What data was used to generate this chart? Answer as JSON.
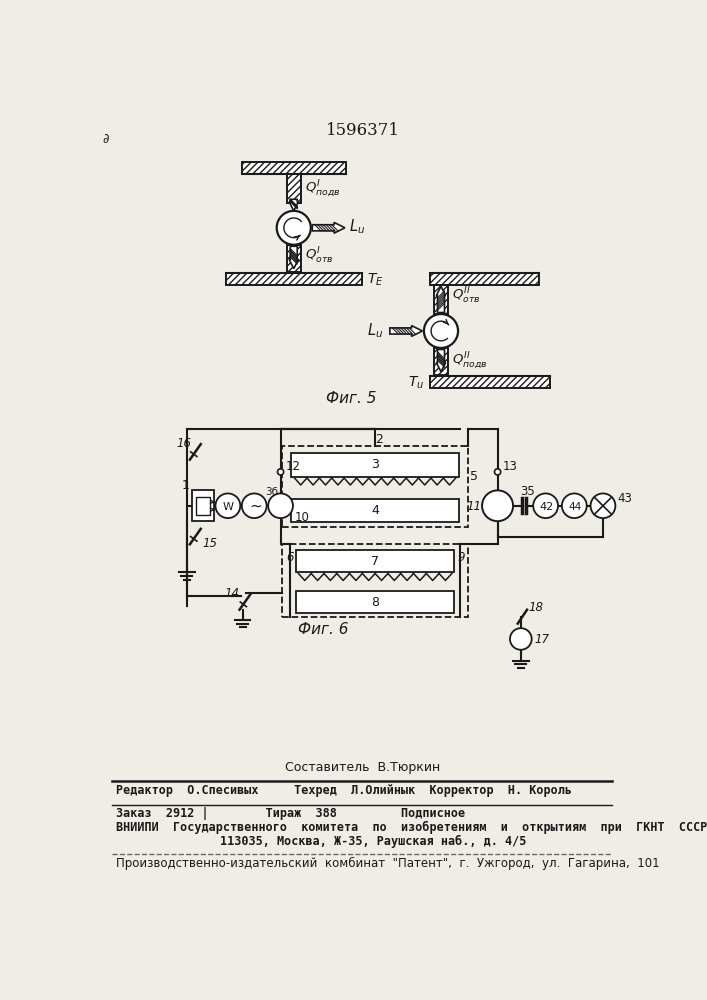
{
  "title": "1596371",
  "background_color": "#f0ede6",
  "line_color": "#1a1a1a",
  "text_color": "#1a1a1a",
  "footer": [
    "Составитель  В.Тюркин",
    "Редактор  О.Спесивых     Техред  Л.Олийнык  Корректор  Н. Король",
    "Заказ  2912 |        Тираж  388         Подписное",
    "ВНИИПИ  Государственного  комитета  по  изобретениям  и  открытиям  при  ГКНТ  СССР",
    "113035, Москва, Ж-35, Раушская наб., д. 4/5",
    "Производственно-издательский  комбинат  \"Патент\",  г.  Ужгород,  ул.  Гагарина,  101"
  ]
}
